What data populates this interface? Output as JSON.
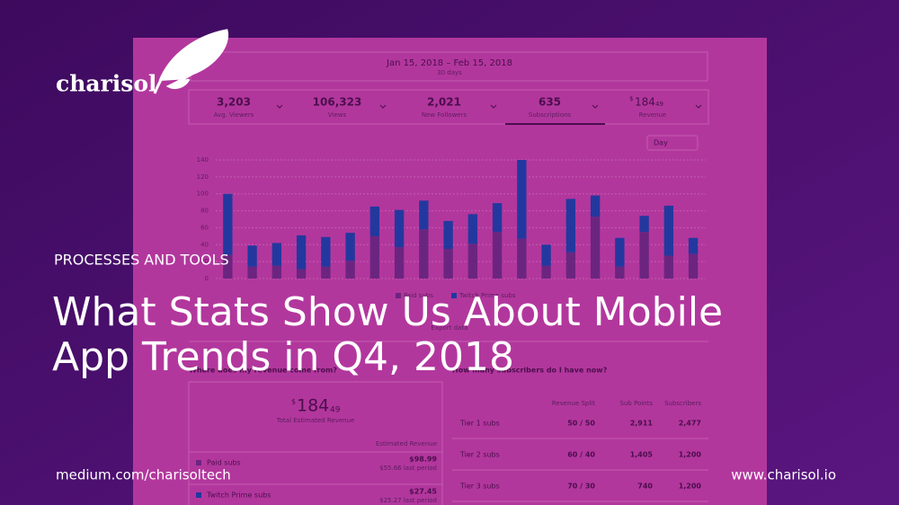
{
  "brand": "charisol",
  "category": "PROCESSES AND TOOLS",
  "title": [
    "What Stats Show Us About Mobile",
    "App Trends in Q4, 2018"
  ],
  "footer": {
    "left": "medium.com/charisoltech",
    "right": "www.charisol.io"
  },
  "dashboard": {
    "date_range": "Jan 15, 2018 – Feb 15, 2018",
    "date_sub": "30 days",
    "stats": [
      {
        "value": "3,203",
        "label": "Avg. Viewers"
      },
      {
        "value": "106,323",
        "label": "Views"
      },
      {
        "value": "2,021",
        "label": "New Followers"
      },
      {
        "value": "635",
        "label": "Subscriptions"
      },
      {
        "currency": "$",
        "value": "184",
        "cents": "49",
        "label": "Revenue"
      }
    ],
    "interval": "Day",
    "chart": {
      "type": "bar",
      "stacked": true,
      "ylim": [
        0,
        140
      ],
      "yticks": [
        0,
        20,
        40,
        60,
        80,
        100,
        120,
        140
      ],
      "grid": true,
      "series": [
        {
          "name": "Paid subs",
          "color": "#6b2580",
          "values": [
            28,
            14,
            15,
            11,
            14,
            21,
            50,
            37,
            58,
            35,
            41,
            55,
            47,
            15,
            31,
            73,
            14,
            55,
            27,
            29
          ]
        },
        {
          "name": "Twitch Prime subs",
          "color": "#23389e",
          "values": [
            72,
            25,
            27,
            40,
            35,
            33,
            35,
            44,
            34,
            33,
            35,
            34,
            93,
            25,
            63,
            25,
            34,
            19,
            59,
            19
          ]
        }
      ]
    },
    "export": "Export data",
    "revenue_panel": {
      "heading": "Where does my revenue come from?",
      "total": {
        "currency": "$",
        "value": "184",
        "cents": "49"
      },
      "total_label": "Total Estimated Revenue",
      "column": "Estimated Revenue",
      "rows": [
        {
          "name": "Paid subs",
          "value": "$98.99",
          "previous": "$55.66 last period"
        },
        {
          "name": "Twitch Prime subs",
          "value": "$27.45",
          "previous": "$25.27 last period"
        }
      ]
    },
    "subs_panel": {
      "heading": "How many subscribers do I have now?",
      "columns": [
        "Revenue Split",
        "Sub Points",
        "Subscribers"
      ],
      "rows": [
        [
          "Tier 1 subs",
          "50 / 50",
          "2,911",
          "2,477"
        ],
        [
          "Tier 2 subs",
          "60 / 40",
          "1,405",
          "1,200"
        ],
        [
          "Tier 3 subs",
          "70 / 30",
          "740",
          "1,200"
        ]
      ]
    }
  }
}
